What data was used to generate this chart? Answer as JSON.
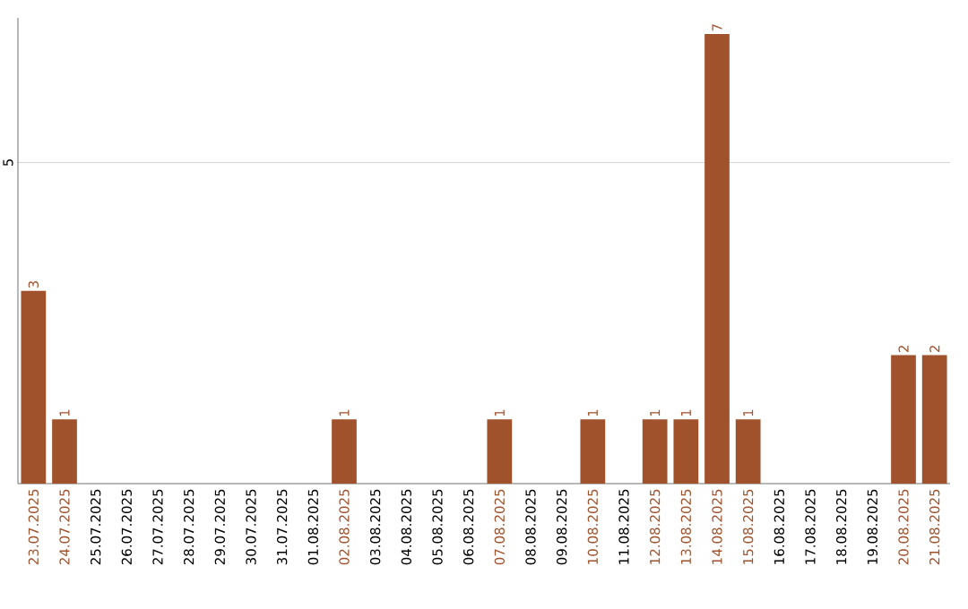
{
  "chart_data": {
    "type": "bar",
    "categories": [
      "23.07.2025",
      "24.07.2025",
      "25.07.2025",
      "26.07.2025",
      "27.07.2025",
      "28.07.2025",
      "29.07.2025",
      "30.07.2025",
      "31.07.2025",
      "01.08.2025",
      "02.08.2025",
      "03.08.2025",
      "04.08.2025",
      "05.08.2025",
      "06.08.2025",
      "07.08.2025",
      "08.08.2025",
      "09.08.2025",
      "10.08.2025",
      "11.08.2025",
      "12.08.2025",
      "13.08.2025",
      "14.08.2025",
      "15.08.2025",
      "16.08.2025",
      "17.08.2025",
      "18.08.2025",
      "19.08.2025",
      "20.08.2025",
      "21.08.2025"
    ],
    "values": [
      3,
      1,
      0,
      0,
      0,
      0,
      0,
      0,
      0,
      0,
      1,
      0,
      0,
      0,
      0,
      1,
      0,
      0,
      1,
      0,
      1,
      1,
      7,
      1,
      0,
      0,
      0,
      0,
      2,
      2
    ],
    "value_labels": [
      "3",
      "1",
      null,
      null,
      null,
      null,
      null,
      null,
      null,
      null,
      "1",
      null,
      null,
      null,
      null,
      "1",
      null,
      null,
      "1",
      null,
      "1",
      "1",
      "7",
      "1",
      null,
      null,
      null,
      null,
      "2",
      "2"
    ],
    "color": "#a0522d",
    "ylim": [
      0,
      7.25
    ],
    "yticks": [
      5
    ],
    "grid": "y"
  }
}
